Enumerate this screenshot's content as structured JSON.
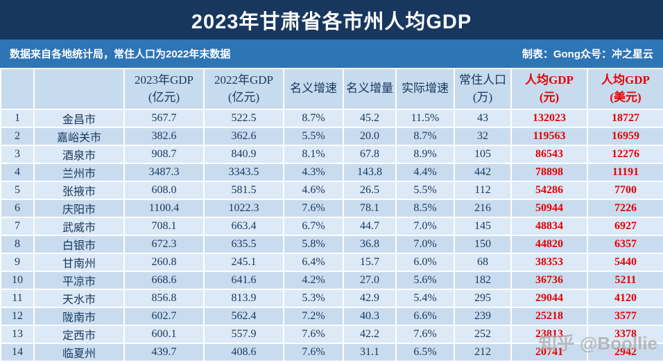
{
  "title": "2023年甘肃省各市州人均GDP",
  "subtitle": {
    "left": "数据来自各地统计局，常住人口为2022年末数据",
    "right": "制表：Gong众号：冲之星云"
  },
  "watermark": "知乎 @Boollie",
  "colors": {
    "title_bg": "#17375e",
    "subtitle_bg": "#2e75b6",
    "text": "#17375e",
    "highlight_red": "#e60000",
    "row_odd": "#dce9f6",
    "row_even": "#c9dcef",
    "header_bg": "#c7dbee"
  },
  "chart_data": {
    "type": "table",
    "columns": [
      {
        "key": "rank",
        "line1": "",
        "line2": "",
        "red": false
      },
      {
        "key": "city",
        "line1": "",
        "line2": "",
        "red": false
      },
      {
        "key": "gdp-2023",
        "line1": "2023年GDP",
        "line2": "(亿元)",
        "red": false
      },
      {
        "key": "gdp-2022",
        "line1": "2022年GDP",
        "line2": "(亿元)",
        "red": false
      },
      {
        "key": "nominal-growth",
        "line1": "名义增速",
        "line2": "",
        "red": false
      },
      {
        "key": "nominal-increase",
        "line1": "名义增量",
        "line2": "",
        "red": false
      },
      {
        "key": "real-growth",
        "line1": "实际增速",
        "line2": "",
        "red": false
      },
      {
        "key": "population",
        "line1": "常住人口",
        "line2": "(万)",
        "red": false
      },
      {
        "key": "gdp-per-capita-cny",
        "line1": "人均GDP",
        "line2": "(元)",
        "red": true
      },
      {
        "key": "gdp-per-capita-usd",
        "line1": "人均GDP",
        "line2": "(美元)",
        "red": true
      }
    ],
    "rows": [
      [
        "1",
        "金昌市",
        "567.7",
        "522.5",
        "8.7%",
        "45.2",
        "11.5%",
        "43",
        "132023",
        "18727"
      ],
      [
        "2",
        "嘉峪关市",
        "382.6",
        "362.6",
        "5.5%",
        "20.0",
        "8.7%",
        "32",
        "119563",
        "16959"
      ],
      [
        "3",
        "酒泉市",
        "908.7",
        "840.9",
        "8.1%",
        "67.8",
        "8.9%",
        "105",
        "86543",
        "12276"
      ],
      [
        "4",
        "兰州市",
        "3487.3",
        "3343.5",
        "4.3%",
        "143.8",
        "4.4%",
        "442",
        "78898",
        "11191"
      ],
      [
        "5",
        "张掖市",
        "608.0",
        "581.5",
        "4.6%",
        "26.5",
        "5.5%",
        "112",
        "54286",
        "7700"
      ],
      [
        "6",
        "庆阳市",
        "1100.4",
        "1022.3",
        "7.6%",
        "78.1",
        "8.5%",
        "216",
        "50944",
        "7226"
      ],
      [
        "7",
        "武威市",
        "708.1",
        "663.4",
        "6.7%",
        "44.7",
        "7.0%",
        "145",
        "48834",
        "6927"
      ],
      [
        "8",
        "白银市",
        "672.3",
        "635.5",
        "5.8%",
        "36.8",
        "7.0%",
        "150",
        "44820",
        "6357"
      ],
      [
        "9",
        "甘南州",
        "260.8",
        "245.1",
        "6.4%",
        "15.7",
        "6.0%",
        "68",
        "38353",
        "5440"
      ],
      [
        "10",
        "平凉市",
        "668.6",
        "641.6",
        "4.2%",
        "27.0",
        "5.6%",
        "182",
        "36736",
        "5211"
      ],
      [
        "11",
        "天水市",
        "856.8",
        "813.9",
        "5.3%",
        "42.9",
        "5.4%",
        "295",
        "29044",
        "4120"
      ],
      [
        "12",
        "陇南市",
        "602.7",
        "562.4",
        "7.2%",
        "40.3",
        "6.6%",
        "239",
        "25218",
        "3577"
      ],
      [
        "13",
        "定西市",
        "600.1",
        "557.9",
        "7.6%",
        "42.2",
        "7.6%",
        "252",
        "23813",
        "3378"
      ],
      [
        "14",
        "临夏州",
        "439.7",
        "408.6",
        "7.6%",
        "31.1",
        "6.5%",
        "212",
        "20741",
        "2942"
      ]
    ]
  }
}
